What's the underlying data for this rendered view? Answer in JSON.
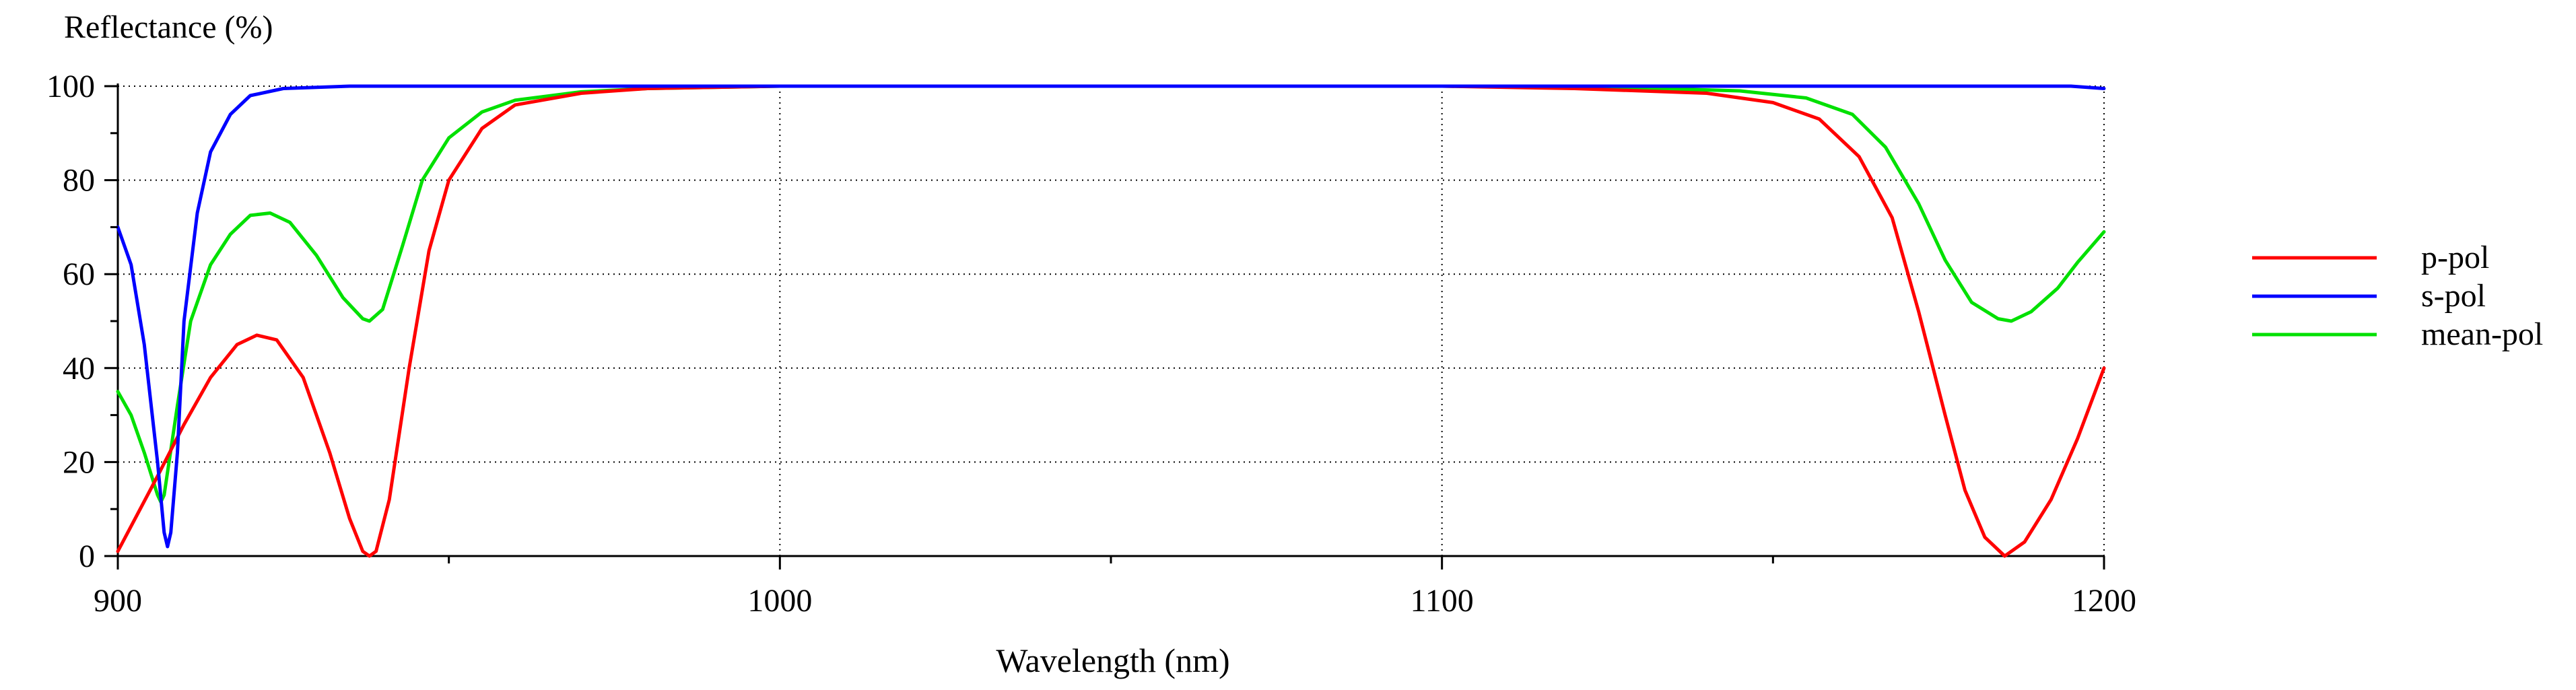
{
  "chart_data": {
    "type": "line",
    "ylabel": "Reflectance (%)",
    "xlabel": "Wavelength (nm)",
    "xlim": [
      900,
      1200
    ],
    "ylim": [
      0,
      100
    ],
    "x_ticks": [
      900,
      1000,
      1100,
      1200
    ],
    "y_ticks": [
      0,
      20,
      40,
      60,
      80,
      100
    ],
    "grid": true,
    "legend_position": "right",
    "series": [
      {
        "name": "p-pol",
        "color": "#ff0000",
        "points": [
          [
            900,
            1
          ],
          [
            903,
            9
          ],
          [
            906,
            17
          ],
          [
            910,
            28
          ],
          [
            914,
            38
          ],
          [
            918,
            45
          ],
          [
            921,
            47
          ],
          [
            924,
            46
          ],
          [
            928,
            38
          ],
          [
            932,
            22
          ],
          [
            935,
            8
          ],
          [
            937,
            1
          ],
          [
            938,
            0
          ],
          [
            939,
            1
          ],
          [
            941,
            12
          ],
          [
            944,
            40
          ],
          [
            947,
            65
          ],
          [
            950,
            80
          ],
          [
            955,
            91
          ],
          [
            960,
            96
          ],
          [
            970,
            98.5
          ],
          [
            980,
            99.5
          ],
          [
            1000,
            100
          ],
          [
            1100,
            100
          ],
          [
            1120,
            99.5
          ],
          [
            1140,
            98.5
          ],
          [
            1150,
            96.5
          ],
          [
            1157,
            93
          ],
          [
            1163,
            85
          ],
          [
            1168,
            72
          ],
          [
            1172,
            52
          ],
          [
            1176,
            30
          ],
          [
            1179,
            14
          ],
          [
            1182,
            4
          ],
          [
            1185,
            0
          ],
          [
            1188,
            3
          ],
          [
            1192,
            12
          ],
          [
            1196,
            25
          ],
          [
            1200,
            40
          ]
        ]
      },
      {
        "name": "s-pol",
        "color": "#0000ff",
        "points": [
          [
            900,
            70
          ],
          [
            902,
            62
          ],
          [
            904,
            45
          ],
          [
            906,
            20
          ],
          [
            907,
            5
          ],
          [
            907.5,
            2
          ],
          [
            908,
            5
          ],
          [
            909,
            22
          ],
          [
            910,
            50
          ],
          [
            912,
            73
          ],
          [
            914,
            86
          ],
          [
            917,
            94
          ],
          [
            920,
            98
          ],
          [
            925,
            99.5
          ],
          [
            935,
            100
          ],
          [
            1195,
            100
          ],
          [
            1200,
            99.5
          ]
        ]
      },
      {
        "name": "mean-pol",
        "color": "#00e000",
        "points": [
          [
            900,
            35
          ],
          [
            902,
            30
          ],
          [
            904,
            22
          ],
          [
            906,
            13
          ],
          [
            906.5,
            11.5
          ],
          [
            907,
            13
          ],
          [
            909,
            32
          ],
          [
            911,
            50
          ],
          [
            914,
            62
          ],
          [
            917,
            68.5
          ],
          [
            920,
            72.5
          ],
          [
            923,
            73
          ],
          [
            926,
            71
          ],
          [
            930,
            64
          ],
          [
            934,
            55
          ],
          [
            937,
            50.5
          ],
          [
            938,
            50
          ],
          [
            940,
            52.5
          ],
          [
            943,
            66
          ],
          [
            946,
            80
          ],
          [
            950,
            89
          ],
          [
            955,
            94.5
          ],
          [
            960,
            97
          ],
          [
            970,
            98.8
          ],
          [
            980,
            99.5
          ],
          [
            1000,
            100
          ],
          [
            1100,
            100
          ],
          [
            1130,
            99.6
          ],
          [
            1145,
            99
          ],
          [
            1155,
            97.5
          ],
          [
            1162,
            94
          ],
          [
            1167,
            87
          ],
          [
            1172,
            75
          ],
          [
            1176,
            63
          ],
          [
            1180,
            54
          ],
          [
            1184,
            50.5
          ],
          [
            1186,
            50
          ],
          [
            1189,
            52
          ],
          [
            1193,
            57
          ],
          [
            1196,
            62.5
          ],
          [
            1200,
            69
          ]
        ]
      }
    ]
  }
}
